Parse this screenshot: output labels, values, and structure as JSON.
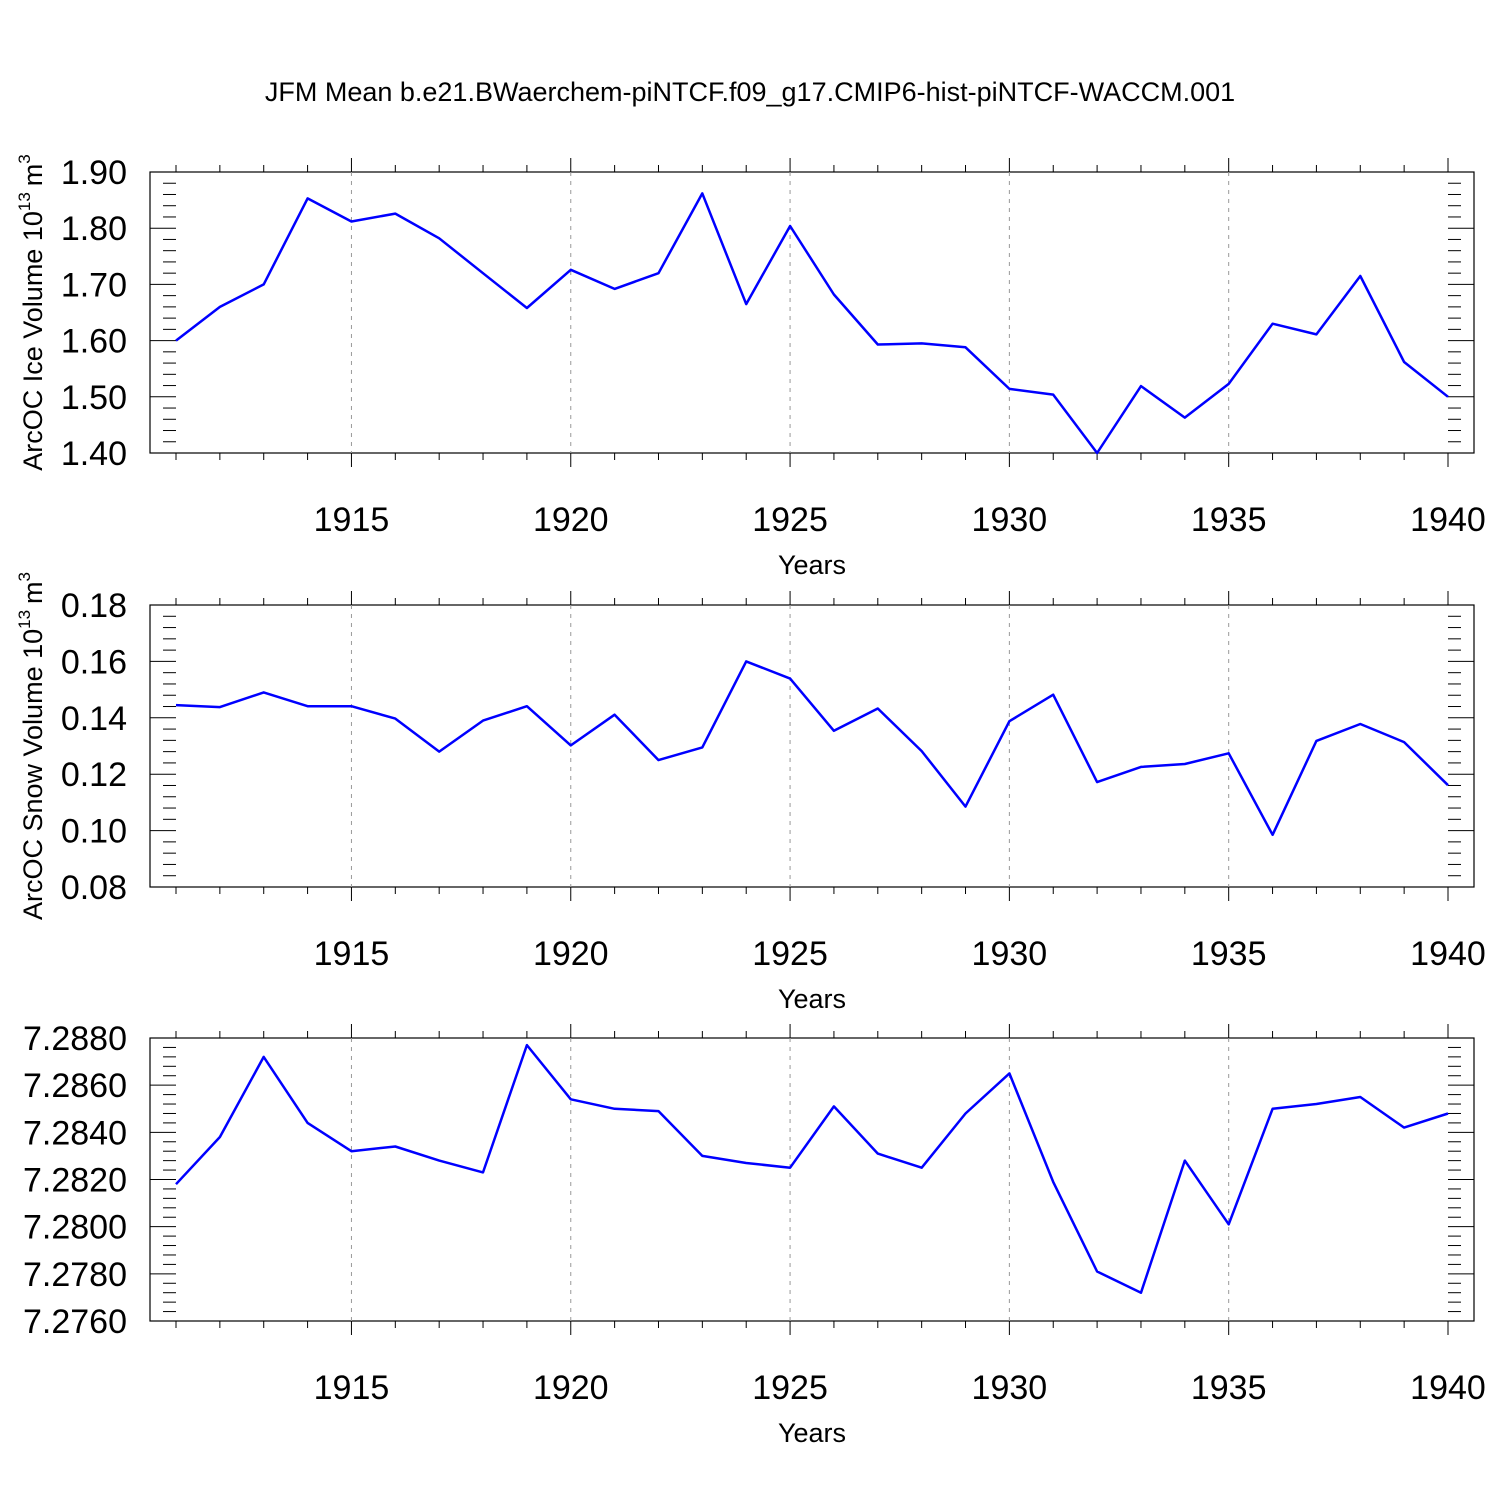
{
  "title": "JFM Mean b.e21.BWaerchem-piNTCF.f09_g17.CMIP6-hist-piNTCF-WACCM.001",
  "colors": {
    "line": "#0000ff",
    "axis": "#000000",
    "grid": "#999999"
  },
  "chart_data": [
    {
      "type": "line",
      "ylabel": "ArcOC Ice Volume 10^13 m^3",
      "ylabel_main": "ArcOC Ice Volume 10",
      "ylabel_exp": "13",
      "ylabel_unit": "m",
      "ylabel_unit_exp": "3",
      "xlabel": "Years",
      "xlim": [
        1911,
        1940
      ],
      "ylim": [
        1.4,
        1.9
      ],
      "y_ticks": [
        "1.40",
        "1.50",
        "1.60",
        "1.70",
        "1.80",
        "1.90"
      ],
      "x_ticks": [
        "1915",
        "1920",
        "1925",
        "1930",
        "1935",
        "1940"
      ],
      "x": [
        1911,
        1912,
        1913,
        1914,
        1915,
        1916,
        1917,
        1918,
        1919,
        1920,
        1921,
        1922,
        1923,
        1924,
        1925,
        1926,
        1927,
        1928,
        1929,
        1930,
        1931,
        1932,
        1933,
        1934,
        1935,
        1936,
        1937,
        1938,
        1939,
        1940
      ],
      "values": [
        1.6,
        1.66,
        1.7,
        1.853,
        1.812,
        1.826,
        1.782,
        1.72,
        1.658,
        1.726,
        1.692,
        1.72,
        1.862,
        1.665,
        1.804,
        1.682,
        1.593,
        1.595,
        1.588,
        1.514,
        1.504,
        1.4,
        1.519,
        1.463,
        1.523,
        1.63,
        1.611,
        1.715,
        1.562,
        1.5
      ],
      "grid": "vertical dashed at major x ticks"
    },
    {
      "type": "line",
      "ylabel": "ArcOC Snow Volume 10^13 m^3",
      "ylabel_main": "ArcOC Snow Volume 10",
      "ylabel_exp": "13",
      "ylabel_unit": "m",
      "ylabel_unit_exp": "3",
      "xlabel": "Years",
      "xlim": [
        1911,
        1940
      ],
      "ylim": [
        0.08,
        0.18
      ],
      "y_ticks": [
        "0.08",
        "0.10",
        "0.12",
        "0.14",
        "0.16",
        "0.18"
      ],
      "x_ticks": [
        "1915",
        "1920",
        "1925",
        "1930",
        "1935",
        "1940"
      ],
      "x": [
        1911,
        1912,
        1913,
        1914,
        1915,
        1916,
        1917,
        1918,
        1919,
        1920,
        1921,
        1922,
        1923,
        1924,
        1925,
        1926,
        1927,
        1928,
        1929,
        1930,
        1931,
        1932,
        1933,
        1934,
        1935,
        1936,
        1937,
        1938,
        1939,
        1940
      ],
      "values": [
        0.1445,
        0.1438,
        0.149,
        0.1441,
        0.1441,
        0.1397,
        0.128,
        0.139,
        0.1441,
        0.1302,
        0.1411,
        0.125,
        0.1295,
        0.16,
        0.1539,
        0.1354,
        0.1433,
        0.1282,
        0.1085,
        0.1388,
        0.1482,
        0.1172,
        0.1226,
        0.1236,
        0.1274,
        0.0985,
        0.1318,
        0.1378,
        0.1314,
        0.1161
      ],
      "grid": "vertical dashed at major x ticks"
    },
    {
      "type": "line",
      "ylabel": "",
      "ylabel_main": "",
      "ylabel_exp": "",
      "ylabel_unit": "",
      "ylabel_unit_exp": "",
      "xlabel": "Years",
      "xlim": [
        1911,
        1940
      ],
      "ylim": [
        7.276,
        7.288
      ],
      "y_ticks": [
        "7.2760",
        "7.2780",
        "7.2800",
        "7.2820",
        "7.2840",
        "7.2860",
        "7.2880"
      ],
      "x_ticks": [
        "1915",
        "1920",
        "1925",
        "1930",
        "1935",
        "1940"
      ],
      "x": [
        1911,
        1912,
        1913,
        1914,
        1915,
        1916,
        1917,
        1918,
        1919,
        1920,
        1921,
        1922,
        1923,
        1924,
        1925,
        1926,
        1927,
        1928,
        1929,
        1930,
        1931,
        1932,
        1933,
        1934,
        1935,
        1936,
        1937,
        1938,
        1939,
        1940
      ],
      "values": [
        7.2818,
        7.2838,
        7.2872,
        7.2844,
        7.2832,
        7.2834,
        7.2828,
        7.2823,
        7.2877,
        7.2854,
        7.285,
        7.2849,
        7.283,
        7.2827,
        7.2825,
        7.2851,
        7.2831,
        7.2825,
        7.2848,
        7.2865,
        7.2819,
        7.2781,
        7.2772,
        7.2828,
        7.2801,
        7.285,
        7.2852,
        7.2855,
        7.2842,
        7.2848
      ],
      "grid": "vertical dashed at major x ticks"
    }
  ]
}
